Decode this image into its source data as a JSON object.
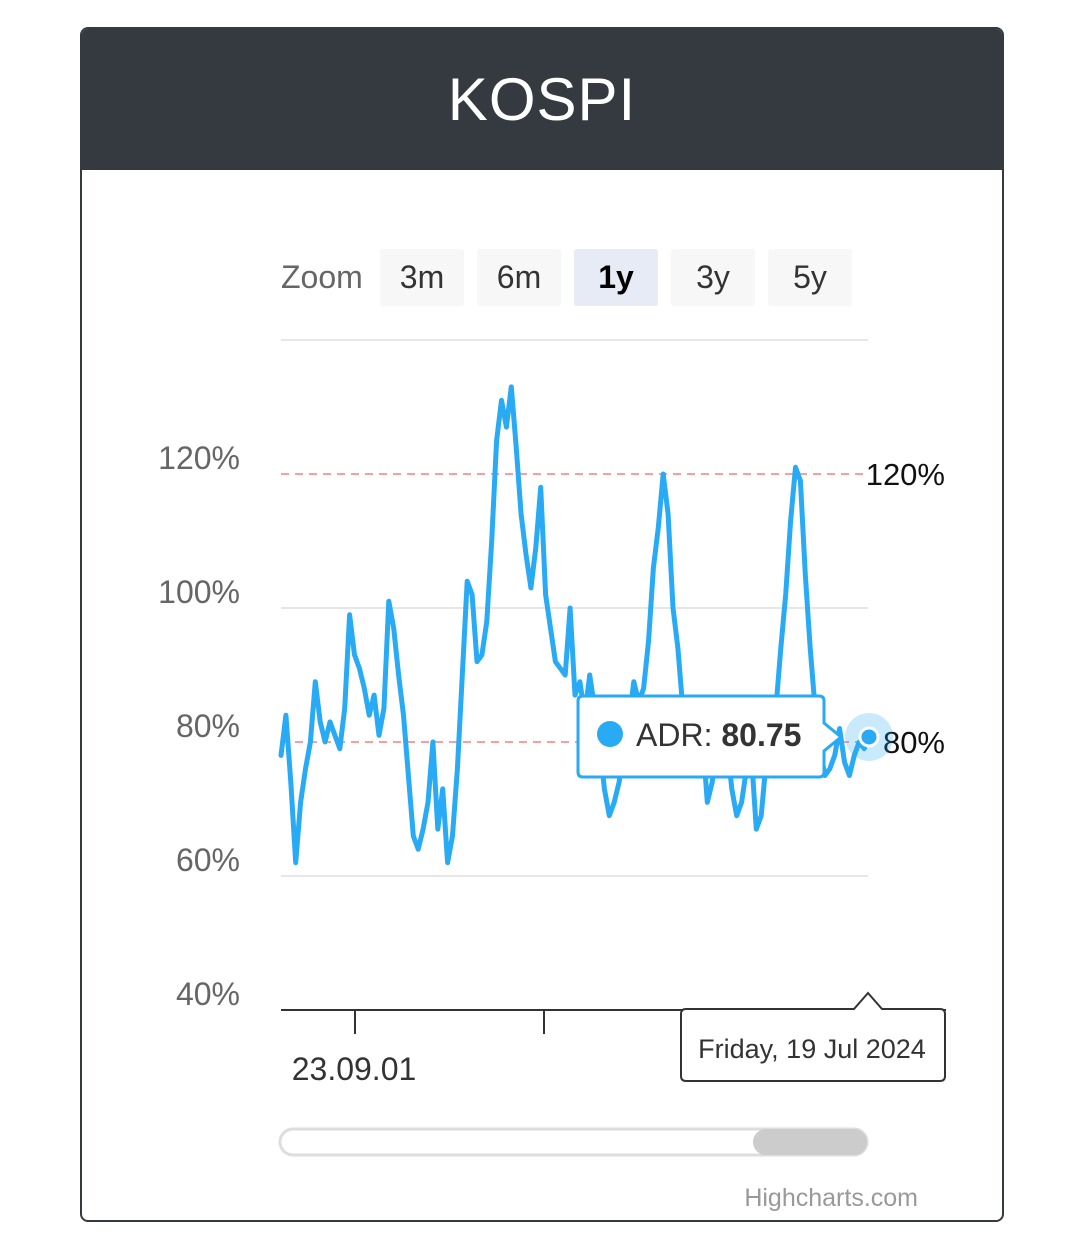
{
  "card": {
    "title": "KOSPI"
  },
  "zoom": {
    "label": "Zoom",
    "buttons": [
      "3m",
      "6m",
      "1y",
      "3y",
      "5y"
    ],
    "selected": "1y"
  },
  "tooltip": {
    "series_name": "ADR",
    "separator": ": ",
    "value": "80.75",
    "date": "Friday, 19 Jul 2024"
  },
  "credits": "Highcharts.com",
  "colors": {
    "series": "#29aaf4",
    "plotline": "#f2a0a0",
    "header": "#343a40"
  },
  "chart_data": {
    "type": "line",
    "title": "KOSPI",
    "y_axis": {
      "ticks": [
        40,
        60,
        80,
        100,
        120
      ],
      "tick_labels": [
        "40%",
        "60%",
        "80%",
        "100%",
        "120%"
      ],
      "range": [
        40,
        140
      ],
      "grid": true
    },
    "x_axis": {
      "tick_labels": [
        "23.09.01"
      ],
      "range_note": "approx. Jul 2023 – Jul 2024"
    },
    "plot_lines": [
      {
        "value": 120,
        "label": "120%",
        "style": "dashed"
      },
      {
        "value": 80,
        "label": "80%",
        "style": "dashed"
      }
    ],
    "series": [
      {
        "name": "ADR",
        "values": [
          78,
          84,
          74,
          62,
          71,
          76,
          80,
          89,
          83,
          80,
          83,
          81,
          79,
          85,
          99,
          93,
          91,
          88,
          84,
          87,
          81,
          85,
          101,
          97,
          90,
          84,
          75,
          66,
          64,
          67,
          71,
          80,
          67,
          73,
          62,
          66,
          76,
          90,
          104,
          102,
          92,
          93,
          98,
          110,
          125,
          131,
          127,
          133,
          124,
          114,
          108,
          103,
          109,
          118,
          102,
          97,
          92,
          91,
          90,
          100,
          87,
          89,
          84,
          90,
          85,
          80,
          73,
          69,
          71,
          74,
          79,
          83,
          89,
          86,
          88,
          95,
          106,
          112,
          120,
          114,
          100,
          94,
          85,
          80,
          76,
          78,
          81,
          71,
          74,
          81,
          84,
          80,
          73,
          69,
          71,
          76,
          78,
          67,
          69,
          77,
          80,
          85,
          94,
          102,
          113,
          121,
          119,
          105,
          94,
          85,
          79,
          75,
          76,
          78,
          82,
          77,
          75,
          78,
          80,
          79,
          80.75
        ]
      }
    ],
    "tooltip_point": {
      "date": "Friday, 19 Jul 2024",
      "series": "ADR",
      "value": 80.75
    }
  }
}
